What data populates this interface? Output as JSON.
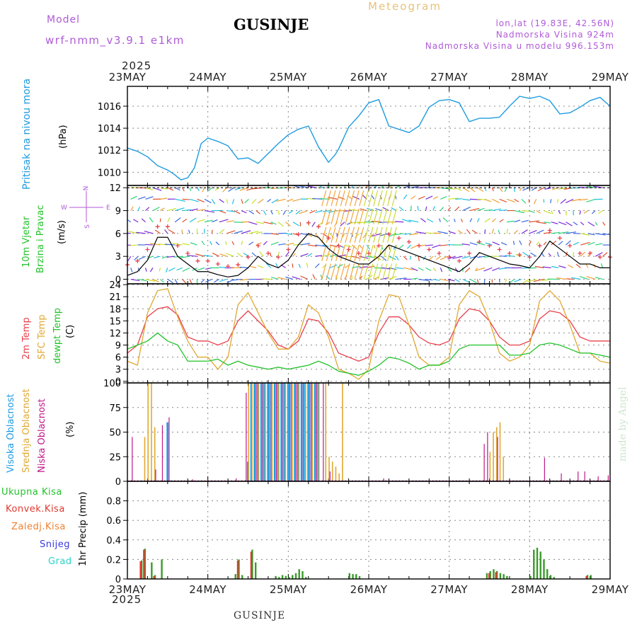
{
  "header": {
    "model_label": "Model",
    "model_name": "wrf-nmm_v3.9.1 e1km",
    "title": "GUSINJE",
    "meteogram": "Meteogram",
    "lonlat": "lon,lat (19.83E, 42.56N)",
    "elevation": "Nadmorska Visina 924m",
    "model_elevation": "Nadmorska Visina u modelu 996.153m",
    "year": "2025",
    "footer_station": "GUSINJE",
    "credit": "made by Angel"
  },
  "colors": {
    "pressure": "#1e9be0",
    "temp2m": "#e8404a",
    "sfc": "#e0a832",
    "dewpt": "#22c32a",
    "high_cloud": "#1e9be0",
    "mid_cloud": "#e0a832",
    "low_cloud": "#c0188a",
    "total_precip": "#3a9b2a",
    "convective": "#e0392f",
    "snow": "#3a3ae0",
    "grad": "#2ad2c8",
    "frozen": "#f08030"
  },
  "days": [
    "23MAY",
    "24MAY",
    "25MAY",
    "26MAY",
    "27MAY",
    "28MAY",
    "29MAY"
  ],
  "labels": {
    "pressure": {
      "name": "Pritisak na nivou mora",
      "unit": "(hPa)"
    },
    "wind": {
      "name1": "10m Vjetar",
      "name2": "Brzina i Pravac",
      "unit": "(m/s)",
      "compass_n": "N",
      "compass_s": "S",
      "compass_w": "W",
      "compass_e": "E"
    },
    "temp": {
      "t2m": "2m Temp",
      "sfc": "SFC Temp",
      "dew": "dewpt Temp",
      "unit": "(C)"
    },
    "cloud": {
      "high": "Visoka Oblacnost",
      "mid": "Srednja Oblacnost",
      "low": "Niska Oblacnost",
      "unit": "(%)"
    },
    "precip": {
      "total": "Ukupna Kisa",
      "conv": "Konvek.Kisa",
      "frozen": "Zaledj.Kisa",
      "snow": "Snijeg",
      "grad": "Grad",
      "unit": "1hr Precip (mm)"
    }
  },
  "chart_data": [
    {
      "type": "line",
      "title": "Pritisak na nivou mora",
      "ylabel": "(hPa)",
      "ylim": [
        1008.8,
        1017.8
      ],
      "yticks": [
        1010,
        1012,
        1014,
        1016
      ],
      "x_unit": "hours since 23MAY 00",
      "series": [
        {
          "name": "Pritisak na nivou mora",
          "x": [
            0,
            3,
            6,
            9,
            12,
            14,
            16,
            18,
            20,
            22,
            24,
            27,
            30,
            33,
            36,
            39,
            42,
            45,
            48,
            51,
            54,
            57,
            60,
            62,
            63,
            66,
            69,
            72,
            75,
            78,
            81,
            84,
            87,
            90,
            93,
            96,
            99,
            102,
            105,
            108,
            111,
            114,
            117,
            120,
            123,
            126,
            129,
            132,
            135,
            138,
            141,
            144
          ],
          "y": [
            1012.2,
            1011.9,
            1011.4,
            1010.6,
            1010.2,
            1009.8,
            1009.3,
            1009.5,
            1010.4,
            1012.6,
            1013.1,
            1012.8,
            1012.4,
            1011.2,
            1011.3,
            1010.8,
            1011.7,
            1012.6,
            1013.4,
            1013.9,
            1014.2,
            1012.3,
            1010.9,
            1011.6,
            1012.1,
            1014.1,
            1015.1,
            1016.3,
            1016.6,
            1014.2,
            1013.9,
            1013.6,
            1014.2,
            1015.9,
            1016.5,
            1016.6,
            1016.3,
            1014.6,
            1014.9,
            1014.9,
            1015.0,
            1016.0,
            1016.9,
            1016.7,
            1016.9,
            1016.5,
            1015.3,
            1015.4,
            1015.9,
            1016.5,
            1016.8,
            1016.0
          ]
        }
      ]
    },
    {
      "type": "line",
      "title": "10m Vjetar Brzina i Pravac",
      "ylabel": "(m/s)",
      "ylim": [
        -0.6,
        12.3
      ],
      "yticks": [
        0,
        3,
        6,
        9,
        12
      ],
      "x_unit": "hours since 23MAY 00",
      "series": [
        {
          "name": "speed",
          "x": [
            0,
            3,
            6,
            9,
            12,
            15,
            18,
            21,
            24,
            27,
            30,
            33,
            36,
            39,
            42,
            45,
            48,
            51,
            54,
            57,
            60,
            63,
            66,
            69,
            72,
            75,
            78,
            81,
            84,
            87,
            90,
            93,
            96,
            99,
            102,
            105,
            108,
            111,
            114,
            117,
            120,
            123,
            126,
            129,
            132,
            135,
            138,
            141,
            144
          ],
          "y": [
            0.5,
            1.0,
            2.5,
            5.5,
            5.5,
            3.0,
            2.0,
            1.0,
            1.0,
            0.6,
            0.3,
            0.5,
            1.5,
            3.0,
            2.0,
            1.5,
            2.5,
            4.5,
            6.0,
            5.5,
            4.0,
            3.0,
            2.5,
            2.0,
            2.0,
            3.0,
            4.5,
            4.0,
            3.5,
            3.0,
            2.5,
            2.0,
            1.5,
            1.0,
            2.0,
            3.5,
            3.0,
            2.5,
            2.0,
            1.8,
            1.5,
            3.0,
            5.0,
            4.0,
            3.0,
            2.0,
            2.0,
            1.5,
            1.5
          ]
        }
      ]
    },
    {
      "type": "line",
      "title": "2m Temp / SFC Temp / dewpt Temp",
      "ylabel": "(C)",
      "ylim": [
        -0.4,
        24.2
      ],
      "yticks": [
        0,
        3,
        6,
        9,
        12,
        15,
        18,
        21,
        24
      ],
      "x_unit": "hours since 23MAY 00",
      "series": [
        {
          "name": "2m Temp",
          "x": [
            0,
            3,
            6,
            9,
            12,
            15,
            18,
            21,
            24,
            27,
            30,
            33,
            36,
            39,
            42,
            45,
            48,
            51,
            54,
            57,
            60,
            63,
            66,
            69,
            72,
            75,
            78,
            81,
            84,
            87,
            90,
            93,
            96,
            99,
            102,
            105,
            108,
            111,
            114,
            117,
            120,
            123,
            126,
            129,
            132,
            135,
            138,
            141,
            144
          ],
          "y": [
            7.0,
            9.0,
            16.0,
            18.0,
            18.5,
            16.5,
            11.0,
            10.0,
            10.0,
            9.0,
            10.0,
            15.0,
            17.5,
            15.0,
            12.5,
            9.0,
            8.0,
            10.0,
            15.5,
            15.0,
            12.0,
            7.0,
            6.0,
            5.0,
            6.0,
            12.0,
            16.0,
            16.0,
            14.0,
            11.0,
            9.5,
            9.0,
            10.0,
            15.5,
            18.0,
            17.5,
            15.0,
            11.0,
            9.0,
            9.0,
            10.0,
            15.5,
            17.5,
            17.0,
            15.0,
            11.0,
            10.0,
            10.0,
            10.0
          ]
        },
        {
          "name": "SFC Temp",
          "x": [
            0,
            3,
            6,
            9,
            12,
            15,
            18,
            21,
            24,
            27,
            30,
            33,
            36,
            39,
            42,
            45,
            48,
            51,
            54,
            57,
            60,
            63,
            66,
            69,
            72,
            75,
            78,
            81,
            84,
            87,
            90,
            93,
            96,
            99,
            102,
            105,
            108,
            111,
            114,
            117,
            120,
            123,
            126,
            129,
            132,
            135,
            138,
            141,
            144
          ],
          "y": [
            5.0,
            4.0,
            17.0,
            22.5,
            23.0,
            16.0,
            10.0,
            6.0,
            6.0,
            3.0,
            6.0,
            19.0,
            22.0,
            17.0,
            12.0,
            8.0,
            8.0,
            11.0,
            19.0,
            17.0,
            11.0,
            3.0,
            2.0,
            0.5,
            3.0,
            15.0,
            21.5,
            21.0,
            14.0,
            6.0,
            4.0,
            4.0,
            6.0,
            19.0,
            22.5,
            21.0,
            15.0,
            7.0,
            5.0,
            6.0,
            9.0,
            20.0,
            22.5,
            20.0,
            14.0,
            7.0,
            7.0,
            5.0,
            4.5
          ]
        },
        {
          "name": "dewpt Temp",
          "x": [
            0,
            3,
            6,
            9,
            12,
            15,
            18,
            21,
            24,
            27,
            30,
            33,
            36,
            39,
            42,
            45,
            48,
            51,
            54,
            57,
            60,
            63,
            66,
            69,
            72,
            75,
            78,
            81,
            84,
            87,
            90,
            93,
            96,
            99,
            102,
            105,
            108,
            111,
            114,
            117,
            120,
            123,
            126,
            129,
            132,
            135,
            138,
            141,
            144
          ],
          "y": [
            8.0,
            9.0,
            10.0,
            12.0,
            10.0,
            9.0,
            5.0,
            5.0,
            5.0,
            5.5,
            4.0,
            5.0,
            4.0,
            3.5,
            3.0,
            3.5,
            3.0,
            3.5,
            4.0,
            5.0,
            4.0,
            2.5,
            2.0,
            1.5,
            2.5,
            4.0,
            6.0,
            5.5,
            4.5,
            3.0,
            4.0,
            4.0,
            5.0,
            8.0,
            9.0,
            9.0,
            9.0,
            9.0,
            6.5,
            6.5,
            7.0,
            9.0,
            9.5,
            9.0,
            8.0,
            7.0,
            7.0,
            6.5,
            6.0
          ]
        }
      ]
    },
    {
      "type": "bar",
      "title": "Visoka / Srednja / Niska Oblacnost",
      "ylabel": "(%)",
      "ylim": [
        0,
        100
      ],
      "yticks": [
        0,
        25,
        50,
        75,
        100
      ],
      "x_unit": "hours since 23MAY 00",
      "series": [
        {
          "name": "Visoka Oblacnost",
          "x": [
            12,
            36,
            37,
            38,
            39,
            40,
            41,
            42,
            43,
            44,
            45,
            46,
            47,
            48,
            49,
            50,
            51,
            52,
            53,
            54,
            55,
            56,
            57
          ],
          "y": [
            60,
            20,
            100,
            100,
            100,
            100,
            100,
            100,
            100,
            100,
            100,
            100,
            100,
            100,
            100,
            100,
            100,
            100,
            100,
            100,
            100,
            100,
            100
          ]
        },
        {
          "name": "Srednja Oblacnost",
          "x": [
            5,
            6,
            7,
            8,
            36,
            37,
            39,
            41,
            43,
            45,
            47,
            49,
            51,
            53,
            55,
            57,
            59,
            60,
            61,
            62,
            63,
            64,
            108,
            109,
            110,
            111,
            112
          ],
          "y": [
            45,
            100,
            100,
            55,
            100,
            100,
            100,
            100,
            100,
            100,
            100,
            100,
            100,
            100,
            100,
            100,
            100,
            25,
            20,
            15,
            8,
            100,
            30,
            50,
            55,
            60,
            25
          ]
        },
        {
          "name": "Niska Oblacnost",
          "x": [
            1,
            8,
            10,
            12,
            19,
            32,
            35,
            38,
            40,
            42,
            44,
            46,
            48,
            50,
            52,
            54,
            56,
            58,
            60,
            76,
            106,
            107,
            110,
            124,
            129,
            134,
            136,
            140,
            143
          ],
          "y": [
            45,
            12,
            57,
            65,
            2,
            3,
            90,
            100,
            100,
            100,
            100,
            100,
            100,
            100,
            100,
            100,
            100,
            100,
            10,
            3,
            38,
            50,
            45,
            24,
            8,
            10,
            10,
            5,
            6
          ]
        }
      ]
    },
    {
      "type": "bar",
      "title": "1hr Precip",
      "ylabel": "1hr Precip (mm)",
      "ylim": [
        0,
        1.0
      ],
      "yticks": [
        0,
        0.2,
        0.4,
        0.6,
        0.8
      ],
      "x_unit": "hours since 23MAY 00",
      "series": [
        {
          "name": "Ukupna Kisa",
          "x": [
            4,
            5,
            7,
            8,
            10,
            32,
            33,
            34,
            37,
            38,
            44,
            45,
            46,
            47,
            48,
            49,
            50,
            51,
            52,
            53,
            66,
            67,
            68,
            69,
            107,
            108,
            109,
            110,
            111,
            112,
            113,
            120,
            121,
            122,
            123,
            124,
            125,
            126,
            127,
            137,
            138
          ],
          "y": [
            0.19,
            0.31,
            0.17,
            0.04,
            0.2,
            0.05,
            0.2,
            0.04,
            0.3,
            0.17,
            0.03,
            0.02,
            0.04,
            0.03,
            0.02,
            0.04,
            0.06,
            0.1,
            0.08,
            0.02,
            0.06,
            0.05,
            0.05,
            0.03,
            0.06,
            0.08,
            0.1,
            0.08,
            0.06,
            0.05,
            0.03,
            0.03,
            0.3,
            0.32,
            0.28,
            0.2,
            0.1,
            0.04,
            0.02,
            0.04,
            0.04
          ]
        },
        {
          "name": "Konvek.Kisa",
          "x": [
            4,
            5,
            8,
            33,
            37,
            108,
            110,
            137
          ],
          "y": [
            0.18,
            0.3,
            0.03,
            0.19,
            0.28,
            0.06,
            0.07,
            0.03
          ]
        }
      ]
    }
  ]
}
